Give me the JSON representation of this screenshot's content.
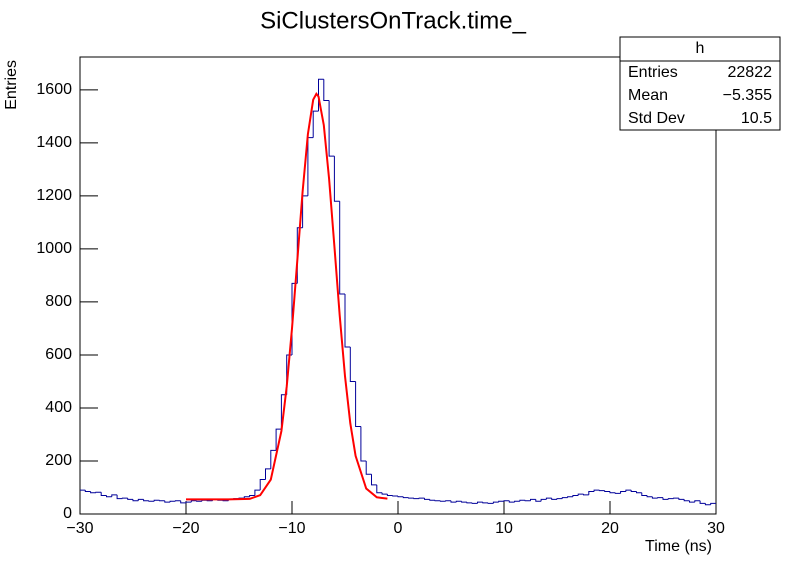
{
  "chart_data": {
    "type": "histogram",
    "title": "SiClustersOnTrack.time_",
    "x_label": "Time (ns)",
    "y_label": "Entries",
    "color": "#000099",
    "bins": [
      -30,
      -29.5,
      -29,
      -28.5,
      -28,
      -27.5,
      -27,
      -26.5,
      -26,
      -25.5,
      -25,
      -24.5,
      -24,
      -23.5,
      -23,
      -22.5,
      -22,
      -21.5,
      -21,
      -20.5,
      -20,
      -19.5,
      -19,
      -18.5,
      -18,
      -17.5,
      -17,
      -16.5,
      -16,
      -15.5,
      -15,
      -14.5,
      -14,
      -13.5,
      -13,
      -12.5,
      -12,
      -11.5,
      -11,
      -10.5,
      -10,
      -9.5,
      -9,
      -8.5,
      -8,
      -7.5,
      -7,
      -6.5,
      -6,
      -5.5,
      -5,
      -4.5,
      -4,
      -3.5,
      -3,
      -2.5,
      -2,
      -1.5,
      -1,
      -0.5,
      0,
      0.5,
      1,
      1.5,
      2,
      2.5,
      3,
      3.5,
      4,
      4.5,
      5,
      5.5,
      6,
      6.5,
      7,
      7.5,
      8,
      8.5,
      9,
      9.5,
      10,
      10.5,
      11,
      11.5,
      12,
      12.5,
      13,
      13.5,
      14,
      14.5,
      15,
      15.5,
      16,
      16.5,
      17,
      17.5,
      18,
      18.5,
      19,
      19.5,
      20,
      20.5,
      21,
      21.5,
      22,
      22.5,
      23,
      23.5,
      24,
      24.5,
      25,
      25.5,
      26,
      26.5,
      27,
      27.5,
      28,
      28.5,
      29,
      29.5,
      30
    ],
    "values": [
      90,
      85,
      80,
      82,
      70,
      65,
      72,
      58,
      60,
      55,
      50,
      55,
      50,
      48,
      52,
      50,
      45,
      48,
      50,
      42,
      45,
      50,
      48,
      52,
      50,
      55,
      52,
      50,
      55,
      58,
      60,
      65,
      70,
      90,
      130,
      170,
      240,
      320,
      450,
      600,
      870,
      1080,
      1200,
      1420,
      1520,
      1640,
      1560,
      1350,
      1180,
      830,
      630,
      500,
      330,
      200,
      150,
      110,
      80,
      75,
      70,
      68,
      65,
      62,
      60,
      58,
      60,
      55,
      52,
      50,
      48,
      50,
      45,
      48,
      45,
      42,
      40,
      45,
      42,
      40,
      45,
      48,
      50,
      45,
      48,
      52,
      50,
      55,
      48,
      55,
      60,
      55,
      58,
      62,
      65,
      70,
      75,
      72,
      85,
      90,
      88,
      85,
      80,
      78,
      85,
      90,
      85,
      80,
      70,
      65,
      60,
      62,
      55,
      58,
      60,
      55,
      50,
      45,
      50,
      40,
      35,
      40
    ],
    "fit": {
      "color": "#ff0000",
      "x": [
        -20,
        -16,
        -14,
        -13,
        -12,
        -11,
        -10.5,
        -10,
        -9.5,
        -9,
        -8.5,
        -8,
        -7.7,
        -7.5,
        -7,
        -6.5,
        -6,
        -5.5,
        -5,
        -4.5,
        -4,
        -3,
        -2,
        -1
      ],
      "values": [
        55,
        55,
        57,
        71,
        130,
        313,
        480,
        700,
        956,
        1216,
        1433,
        1563,
        1585,
        1575,
        1467,
        1264,
        1010,
        749,
        520,
        342,
        219,
        96,
        63,
        58
      ]
    },
    "xlim": [
      -30,
      30
    ],
    "ylim": [
      0,
      1724
    ],
    "xticks": [
      {
        "value": -30,
        "label": "−30"
      },
      {
        "value": -20,
        "label": "−20"
      },
      {
        "value": -10,
        "label": "−10"
      },
      0,
      10,
      20,
      30
    ],
    "yticks": [
      0,
      200,
      400,
      600,
      800,
      1000,
      1200,
      1400,
      1600
    ],
    "stats": {
      "title": "h",
      "rows": [
        [
          "Entries",
          "22822"
        ],
        [
          "Mean",
          "−5.355"
        ],
        [
          "Std Dev",
          "10.5"
        ]
      ]
    }
  }
}
